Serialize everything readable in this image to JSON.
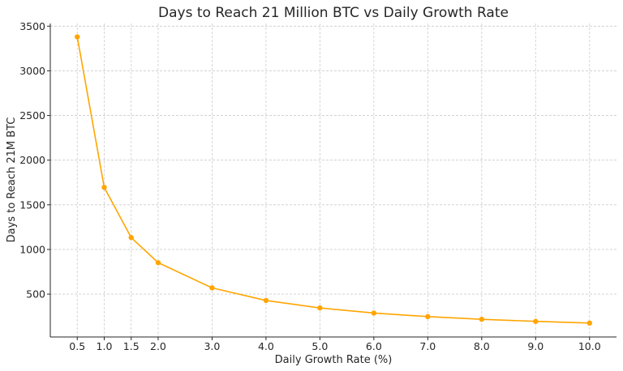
{
  "chart_data": {
    "type": "line",
    "title": "Days to Reach 21 Million BTC vs Daily Growth Rate",
    "xlabel": "Daily Growth Rate (%)",
    "ylabel": "Days to Reach 21M BTC",
    "x": [
      0.5,
      1.0,
      1.5,
      2.0,
      3.0,
      4.0,
      5.0,
      6.0,
      7.0,
      8.0,
      9.0,
      10.0
    ],
    "x_tick_labels": [
      "0.5",
      "1.0",
      "1.5",
      "2.0",
      "3.0",
      "4.0",
      "5.0",
      "6.0",
      "7.0",
      "8.0",
      "9.0",
      "10.0"
    ],
    "y_ticks": [
      500,
      1000,
      1500,
      2000,
      2500,
      3000,
      3500
    ],
    "y_tick_labels": [
      "500",
      "1000",
      "1500",
      "2000",
      "2500",
      "3000",
      "3500"
    ],
    "xlim": [
      0.0,
      10.5
    ],
    "ylim": [
      20,
      3530
    ],
    "grid": true,
    "series": [
      {
        "values": [
          3380,
          1695,
          1133,
          852,
          570,
          429,
          345,
          288,
          248,
          218,
          195,
          176
        ],
        "color": "#FFA500",
        "marker": "circle"
      }
    ]
  }
}
